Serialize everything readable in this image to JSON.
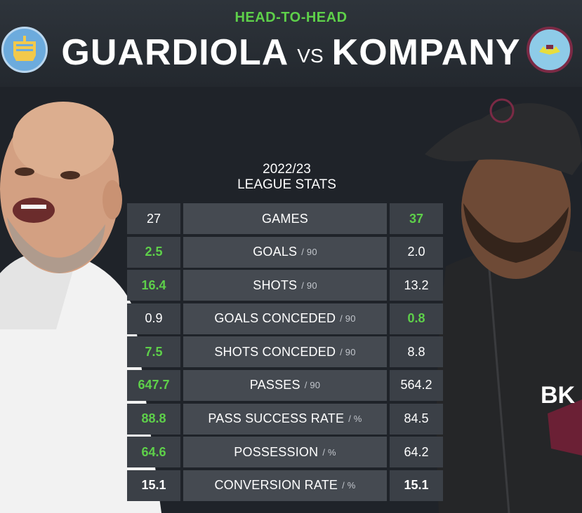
{
  "header": {
    "kicker": "HEAD-TO-HEAD",
    "left_name": "GUARDIOLA",
    "vs": "VS",
    "right_name": "KOMPANY"
  },
  "season": {
    "line1": "2022/23",
    "line2": "LEAGUE STATS"
  },
  "colors": {
    "accent_green": "#5ed04a",
    "background": "#1f2329",
    "city_blue": "#6cabdd",
    "burnley_claret": "#7b2a45"
  },
  "stats": [
    {
      "label": "GAMES",
      "unit": "",
      "left": "27",
      "right": "37",
      "winner": "right"
    },
    {
      "label": "GOALS",
      "unit": "/ 90",
      "left": "2.5",
      "right": "2.0",
      "winner": "left"
    },
    {
      "label": "SHOTS",
      "unit": "/ 90",
      "left": "16.4",
      "right": "13.2",
      "winner": "left"
    },
    {
      "label": "GOALS CONCEDED",
      "unit": "/ 90",
      "left": "0.9",
      "right": "0.8",
      "winner": "right"
    },
    {
      "label": "SHOTS CONCEDED",
      "unit": "/ 90",
      "left": "7.5",
      "right": "8.8",
      "winner": "left"
    },
    {
      "label": "PASSES",
      "unit": "/ 90",
      "left": "647.7",
      "right": "564.2",
      "winner": "left"
    },
    {
      "label": "PASS SUCCESS RATE",
      "unit": "/ %",
      "left": "88.8",
      "right": "84.5",
      "winner": "left"
    },
    {
      "label": "POSSESSION",
      "unit": "/ %",
      "left": "64.6",
      "right": "64.2",
      "winner": "left"
    },
    {
      "label": "CONVERSION RATE",
      "unit": "/ %",
      "left": "15.1",
      "right": "15.1",
      "winner": "tie"
    }
  ],
  "icons": {
    "left_badge": "manchester-city-crest-icon",
    "right_badge": "burnley-crest-icon"
  },
  "jersey_text": "BK"
}
